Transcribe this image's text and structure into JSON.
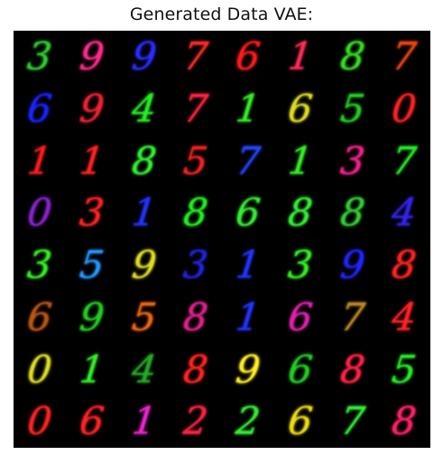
{
  "title": "Generated Data VAE:",
  "grid": {
    "rows": 8,
    "cols": 8,
    "cells": [
      {
        "digit": "3",
        "color": "#2ecc2e"
      },
      {
        "digit": "9",
        "color": "#ff2a8a"
      },
      {
        "digit": "9",
        "color": "#2a2aff"
      },
      {
        "digit": "7",
        "color": "#ff2a2a"
      },
      {
        "digit": "6",
        "color": "#ff1a1a"
      },
      {
        "digit": "1",
        "color": "#ff2a55"
      },
      {
        "digit": "8",
        "color": "#33dd22"
      },
      {
        "digit": "7",
        "color": "#ee4411"
      },
      {
        "digit": "6",
        "color": "#1a22ff"
      },
      {
        "digit": "9",
        "color": "#ee2233"
      },
      {
        "digit": "4",
        "color": "#22ee22"
      },
      {
        "digit": "7",
        "color": "#ff2244"
      },
      {
        "digit": "1",
        "color": "#33ee22"
      },
      {
        "digit": "6",
        "color": "#dddd22"
      },
      {
        "digit": "5",
        "color": "#22cc22"
      },
      {
        "digit": "0",
        "color": "#ff2222"
      },
      {
        "digit": "1",
        "color": "#ff1a1a"
      },
      {
        "digit": "1",
        "color": "#ff2222"
      },
      {
        "digit": "8",
        "color": "#33ee33"
      },
      {
        "digit": "5",
        "color": "#ee2222"
      },
      {
        "digit": "7",
        "color": "#2244ff"
      },
      {
        "digit": "1",
        "color": "#33ee22"
      },
      {
        "digit": "3",
        "color": "#ee2288"
      },
      {
        "digit": "7",
        "color": "#22ee22"
      },
      {
        "digit": "0",
        "color": "#8822cc"
      },
      {
        "digit": "3",
        "color": "#ff2222"
      },
      {
        "digit": "1",
        "color": "#2233ff"
      },
      {
        "digit": "8",
        "color": "#22ee22"
      },
      {
        "digit": "6",
        "color": "#33ee33"
      },
      {
        "digit": "8",
        "color": "#33ee33"
      },
      {
        "digit": "8",
        "color": "#33cc33"
      },
      {
        "digit": "4",
        "color": "#3322ee"
      },
      {
        "digit": "3",
        "color": "#33ee22"
      },
      {
        "digit": "5",
        "color": "#2299ff"
      },
      {
        "digit": "9",
        "color": "#dddd22"
      },
      {
        "digit": "3",
        "color": "#2222dd"
      },
      {
        "digit": "1",
        "color": "#2233ff"
      },
      {
        "digit": "3",
        "color": "#33ee22"
      },
      {
        "digit": "9",
        "color": "#2222ff"
      },
      {
        "digit": "8",
        "color": "#ff2222"
      },
      {
        "digit": "6",
        "color": "#bb5511"
      },
      {
        "digit": "9",
        "color": "#22cc22"
      },
      {
        "digit": "5",
        "color": "#ee6611"
      },
      {
        "digit": "8",
        "color": "#dd2288"
      },
      {
        "digit": "1",
        "color": "#2233ff"
      },
      {
        "digit": "6",
        "color": "#dd22aa"
      },
      {
        "digit": "7",
        "color": "#bb8822"
      },
      {
        "digit": "4",
        "color": "#ff2222"
      },
      {
        "digit": "0",
        "color": "#dddd22"
      },
      {
        "digit": "1",
        "color": "#33ee22"
      },
      {
        "digit": "4",
        "color": "#22aa22"
      },
      {
        "digit": "8",
        "color": "#ff2222"
      },
      {
        "digit": "9",
        "color": "#ffee22"
      },
      {
        "digit": "6",
        "color": "#22cc22"
      },
      {
        "digit": "8",
        "color": "#ff2244"
      },
      {
        "digit": "5",
        "color": "#22ee22"
      },
      {
        "digit": "0",
        "color": "#ff2222"
      },
      {
        "digit": "6",
        "color": "#ff2222"
      },
      {
        "digit": "1",
        "color": "#ee22cc"
      },
      {
        "digit": "2",
        "color": "#ff2244"
      },
      {
        "digit": "2",
        "color": "#33ee33"
      },
      {
        "digit": "6",
        "color": "#eedd11"
      },
      {
        "digit": "7",
        "color": "#33ee33"
      },
      {
        "digit": "8",
        "color": "#ff2266"
      }
    ]
  }
}
